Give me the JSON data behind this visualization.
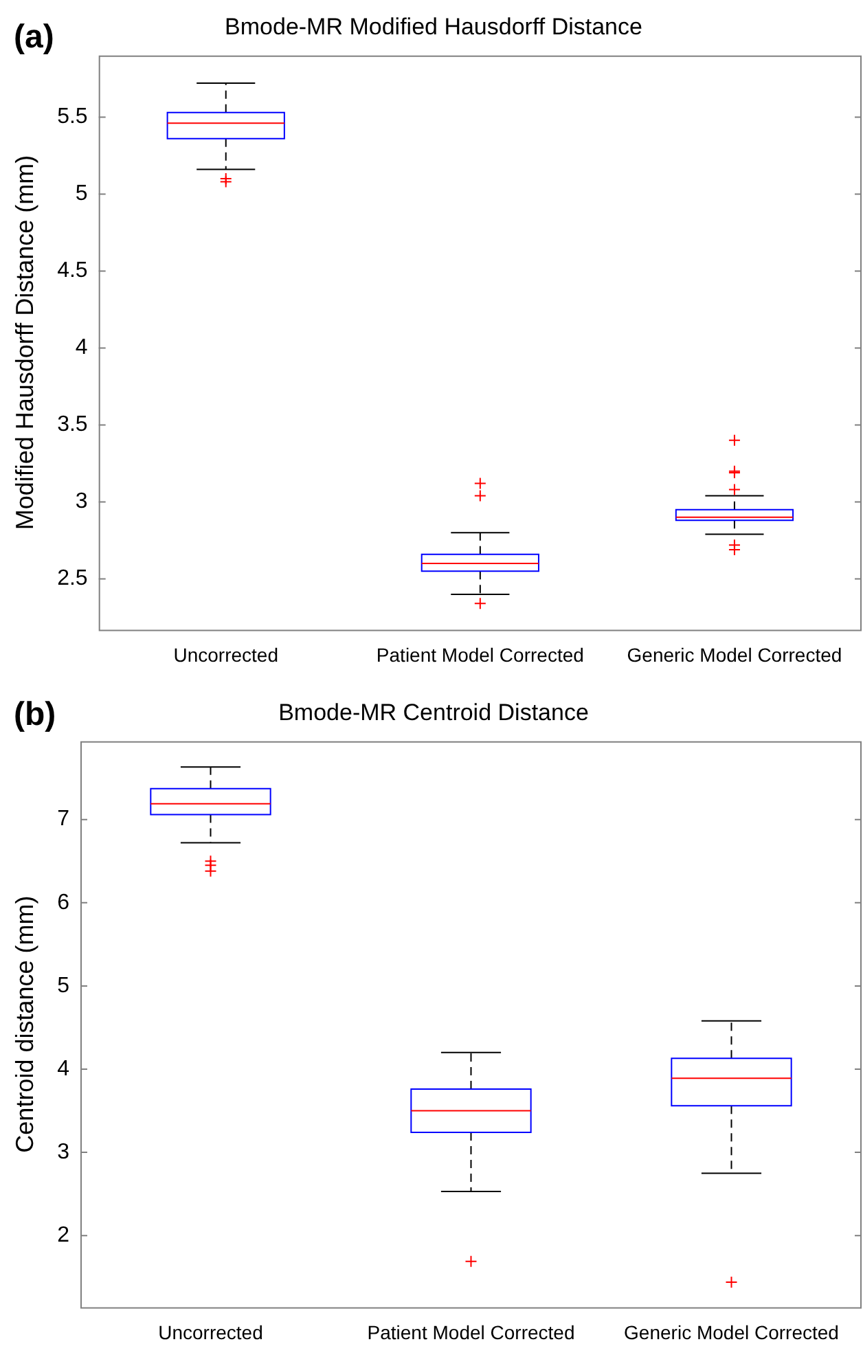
{
  "chart_data": [
    {
      "type": "box",
      "title": "Bmode-MR Modified Hausdorff Distance",
      "ylabel": "Modified Hausdorff Distance (mm)",
      "annotations": [
        "(a)"
      ],
      "categories": [
        "Uncorrected",
        "Patient Model Corrected",
        "Generic Model Corrected"
      ],
      "ylim": [
        2.17,
        5.9
      ],
      "yticks": [
        2.5,
        3,
        3.5,
        4,
        4.5,
        5,
        5.5
      ],
      "grid": false,
      "legend": false,
      "marker": "cross",
      "series": [
        {
          "color": "#0000ff",
          "boxes": [
            {
              "low": 5.16,
              "q1": 5.36,
              "median": 5.46,
              "q3": 5.53,
              "high": 5.72,
              "outliers": [
                5.1,
                5.08
              ]
            },
            {
              "low": 2.4,
              "q1": 2.55,
              "median": 2.6,
              "q3": 2.66,
              "high": 2.8,
              "outliers": [
                3.12,
                3.04,
                2.34
              ]
            },
            {
              "low": 2.79,
              "q1": 2.88,
              "median": 2.9,
              "q3": 2.95,
              "high": 3.04,
              "outliers": [
                3.4,
                3.2,
                3.19,
                3.08,
                2.72,
                2.69
              ]
            }
          ]
        }
      ]
    },
    {
      "type": "box",
      "title": "Bmode-MR Centroid Distance",
      "ylabel": "Centroid distance (mm)",
      "annotations": [
        "(b)"
      ],
      "categories": [
        "Uncorrected",
        "Patient Model Corrected",
        "Generic Model Corrected"
      ],
      "ylim": [
        1.14,
        7.94
      ],
      "yticks": [
        2,
        3,
        4,
        5,
        6,
        7
      ],
      "grid": false,
      "legend": false,
      "marker": "cross",
      "series": [
        {
          "color": "#0000ff",
          "boxes": [
            {
              "low": 6.72,
              "q1": 7.06,
              "median": 7.19,
              "q3": 7.37,
              "high": 7.63,
              "outliers": [
                6.5,
                6.45,
                6.38
              ]
            },
            {
              "low": 2.53,
              "q1": 3.24,
              "median": 3.5,
              "q3": 3.76,
              "high": 4.2,
              "outliers": [
                1.69
              ]
            },
            {
              "low": 2.75,
              "q1": 3.56,
              "median": 3.89,
              "q3": 4.13,
              "high": 4.58,
              "outliers": [
                1.44
              ]
            }
          ]
        }
      ]
    }
  ]
}
